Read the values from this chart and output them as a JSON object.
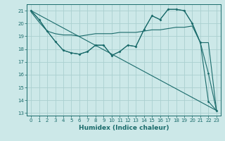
{
  "xlabel": "Humidex (Indice chaleur)",
  "bg_color": "#cce8e8",
  "grid_color": "#aad0d0",
  "line_color": "#1a6b6b",
  "xlim": [
    -0.5,
    23.5
  ],
  "ylim": [
    12.8,
    21.5
  ],
  "yticks": [
    13,
    14,
    15,
    16,
    17,
    18,
    19,
    20,
    21
  ],
  "xticks": [
    0,
    1,
    2,
    3,
    4,
    5,
    6,
    7,
    8,
    9,
    10,
    11,
    12,
    13,
    14,
    15,
    16,
    17,
    18,
    19,
    20,
    21,
    22,
    23
  ],
  "line1_x": [
    0,
    1,
    2,
    3,
    4,
    5,
    6,
    7,
    8,
    9,
    10,
    11,
    12,
    13,
    14,
    15,
    16,
    17,
    18,
    19,
    20,
    21,
    22,
    23
  ],
  "line1_y": [
    21.0,
    20.3,
    19.4,
    18.6,
    17.9,
    17.7,
    17.6,
    17.8,
    18.3,
    18.3,
    17.5,
    17.8,
    18.3,
    18.2,
    19.5,
    20.6,
    20.3,
    21.1,
    21.1,
    21.0,
    20.0,
    18.5,
    16.1,
    13.2
  ],
  "line2_x": [
    0,
    1,
    2,
    3,
    4,
    5,
    6,
    7,
    8,
    9,
    10,
    11,
    12,
    13,
    14,
    15,
    16,
    17,
    18,
    19,
    20,
    21,
    22,
    23
  ],
  "line2_y": [
    21.0,
    20.3,
    19.4,
    18.6,
    17.9,
    17.7,
    17.6,
    17.8,
    18.3,
    18.3,
    17.5,
    17.8,
    18.3,
    18.2,
    19.5,
    20.6,
    20.3,
    21.1,
    21.1,
    21.0,
    20.0,
    18.5,
    13.9,
    13.2
  ],
  "line3_x": [
    0,
    1,
    2,
    3,
    4,
    5,
    6,
    7,
    8,
    9,
    10,
    11,
    12,
    13,
    14,
    15,
    16,
    17,
    18,
    19,
    20,
    21,
    22,
    23
  ],
  "line3_y": [
    20.9,
    20.1,
    19.4,
    19.2,
    19.1,
    19.1,
    19.0,
    19.1,
    19.2,
    19.2,
    19.2,
    19.3,
    19.3,
    19.3,
    19.4,
    19.5,
    19.5,
    19.6,
    19.7,
    19.7,
    19.8,
    18.5,
    18.5,
    13.2
  ],
  "line4_x": [
    0,
    23
  ],
  "line4_y": [
    21.0,
    13.2
  ]
}
